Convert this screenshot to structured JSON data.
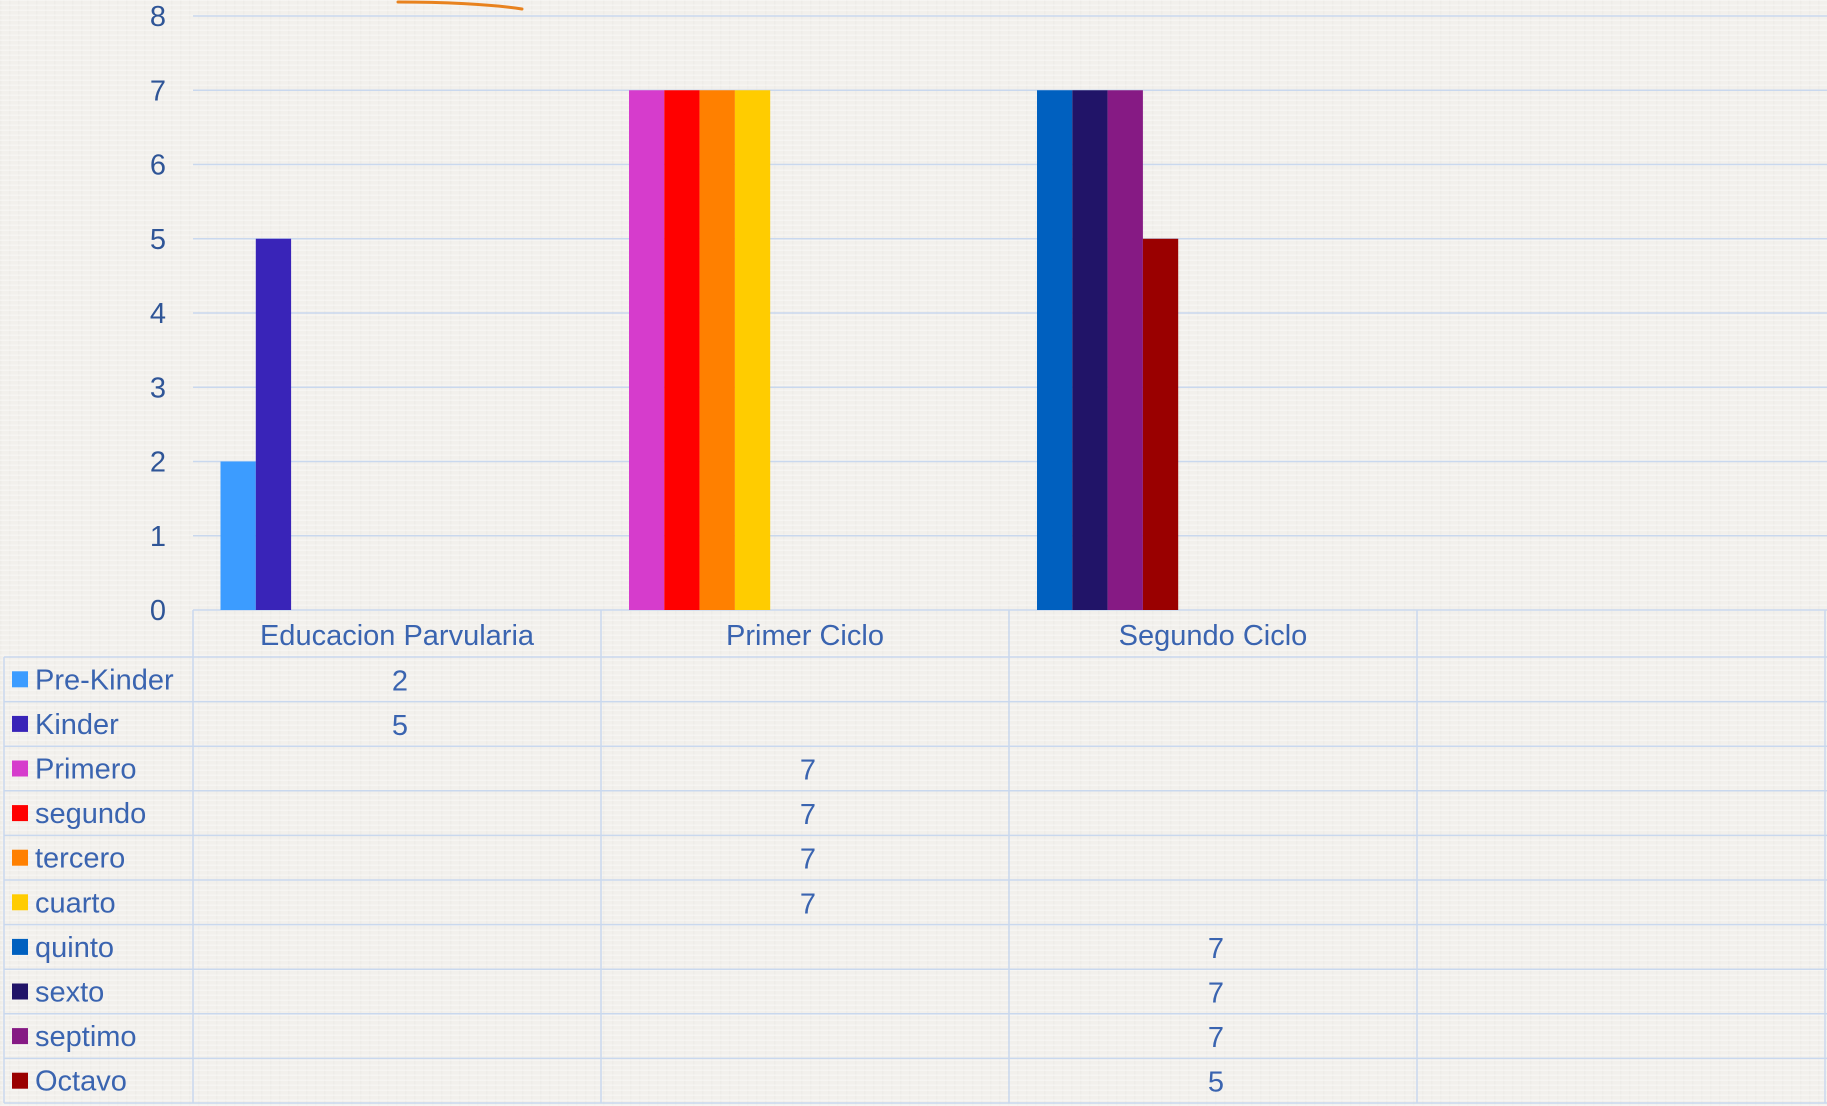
{
  "chart_data": {
    "type": "bar",
    "categories": [
      "Educacion Parvularia",
      "Primer Ciclo",
      "Segundo Ciclo",
      ""
    ],
    "ylim": [
      0,
      8
    ],
    "yticks": [
      "0",
      "1",
      "2",
      "3",
      "4",
      "5",
      "6",
      "7",
      "8"
    ],
    "grid": true,
    "data_table": true,
    "series": [
      {
        "name": "Pre-Kinder",
        "color": "#3c9cff",
        "values": [
          2,
          null,
          null,
          null
        ]
      },
      {
        "name": "Kinder",
        "color": "#3924b8",
        "values": [
          5,
          null,
          null,
          null
        ]
      },
      {
        "name": "Primero",
        "color": "#d63ccc",
        "values": [
          null,
          7,
          null,
          null
        ]
      },
      {
        "name": "segundo",
        "color": "#ff0000",
        "values": [
          null,
          7,
          null,
          null
        ]
      },
      {
        "name": "tercero",
        "color": "#ff8000",
        "values": [
          null,
          7,
          null,
          null
        ]
      },
      {
        "name": "cuarto",
        "color": "#ffcc00",
        "values": [
          null,
          7,
          null,
          null
        ]
      },
      {
        "name": "quinto",
        "color": "#0060bf",
        "values": [
          null,
          null,
          7,
          null
        ]
      },
      {
        "name": "sexto",
        "color": "#211468",
        "values": [
          null,
          null,
          7,
          null
        ]
      },
      {
        "name": "septimo",
        "color": "#861a84",
        "values": [
          null,
          null,
          7,
          null
        ]
      },
      {
        "name": "Octavo",
        "color": "#9a0000",
        "values": [
          null,
          null,
          5,
          null
        ]
      }
    ]
  }
}
